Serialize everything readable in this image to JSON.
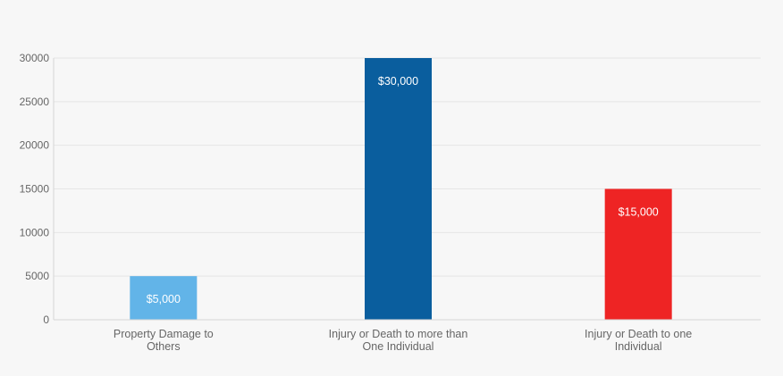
{
  "chart_data": {
    "type": "bar",
    "title": "",
    "xlabel": "",
    "ylabel": "",
    "ylim": [
      0,
      30000
    ],
    "yticks": [
      0,
      5000,
      10000,
      15000,
      20000,
      25000,
      30000
    ],
    "grid": true,
    "categories": [
      [
        "Property Damage to",
        "Others"
      ],
      [
        "Injury or Death to more than",
        "One Individual"
      ],
      [
        "Injury or Death to one",
        "Individual"
      ]
    ],
    "values": [
      5000,
      30000,
      15000
    ],
    "data_labels": [
      "$5,000",
      "$30,000",
      "$15,000"
    ],
    "colors": [
      "#62b4e8",
      "#0a5e9e",
      "#ee2424"
    ]
  },
  "style": {
    "background": "#f7f7f7",
    "grid_color": "#e6e6e6",
    "axis_color": "#d6d6d6",
    "text_color": "#666666"
  }
}
